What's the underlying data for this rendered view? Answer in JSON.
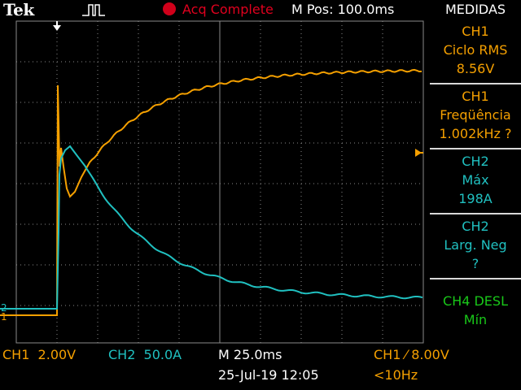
{
  "header": {
    "brand": "Tek",
    "trigger_icon": "trigger-pulse-icon",
    "acquisition_status": "Acq Complete",
    "m_pos": "M Pos: 100.0ms",
    "measurements_title": "MEDIDAS"
  },
  "colors": {
    "ch1": "#f5a000",
    "ch2": "#20c0c0",
    "ch4": "#19c819",
    "grid": "#8a8a8a",
    "acq": "#e0001e"
  },
  "measurements": [
    {
      "channel": "CH1",
      "name": "Ciclo RMS",
      "value": "8.56V"
    },
    {
      "channel": "CH1",
      "name": "Freqüência",
      "value": "1.002kHz ?"
    },
    {
      "channel": "CH2",
      "name": "Máx",
      "value": "198A"
    },
    {
      "channel": "CH2",
      "name": "Larg. Neg",
      "value": "?"
    },
    {
      "channel": "CH4 DESL",
      "name": "Mín",
      "value": ""
    }
  ],
  "channel_markers": {
    "ch1": "1",
    "ch2": "2"
  },
  "footer": {
    "ch1_scale": "CH1  2.00V",
    "ch2_scale": "CH2  50.0A",
    "timebase": "M 25.0ms",
    "date_time": "25-Jul-19 12:05",
    "trigger": "CH1 ⁄ 8.00V",
    "trigger_freq": "<10Hz"
  }
}
